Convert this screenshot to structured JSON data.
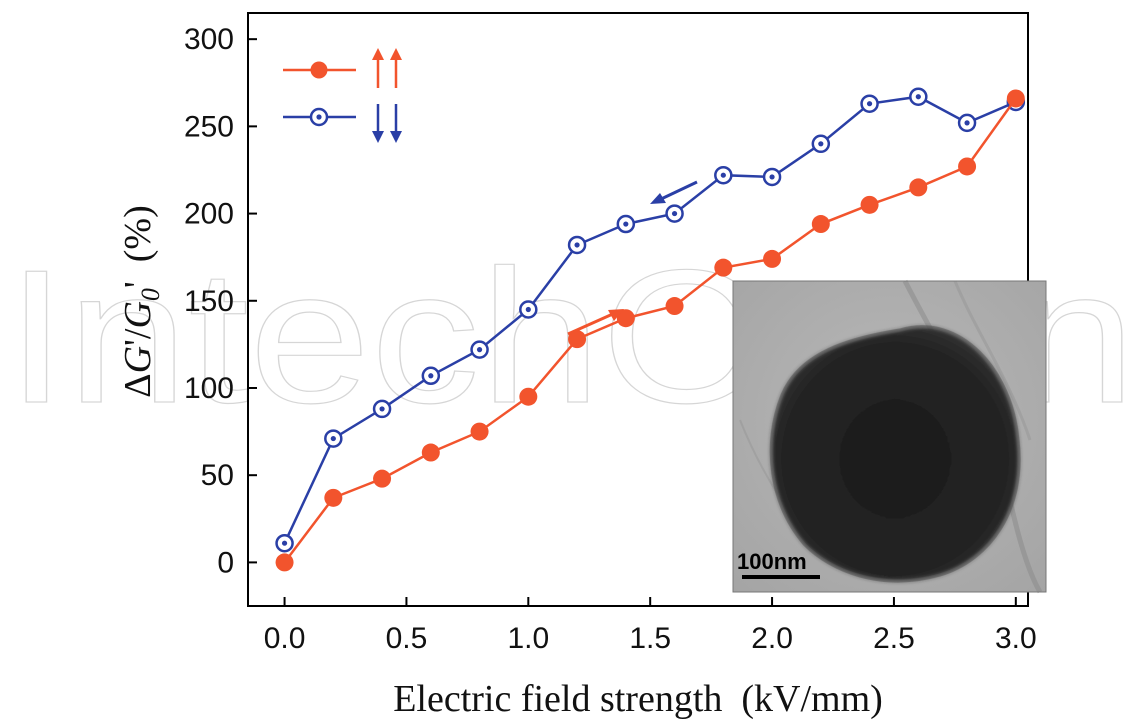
{
  "watermark": "IntechOpen",
  "chart_data": {
    "type": "line",
    "xlabel": "Electric field strength  (kV/mm)",
    "ylabel": "ΔG'/G0'  (%)",
    "ylabel_parts": {
      "delta": "Δ",
      "g1": "G",
      "p1": "'",
      "slash": "/",
      "g2": "G",
      "sub": "0",
      "p2": "'",
      "unit": "  (%)"
    },
    "xlim": [
      -0.15,
      3.05
    ],
    "ylim": [
      -25,
      315
    ],
    "x_ticks": [
      0.0,
      0.5,
      1.0,
      1.5,
      2.0,
      2.5,
      3.0
    ],
    "x_tick_labels": [
      "0.0",
      "0.5",
      "1.0",
      "1.5",
      "2.0",
      "2.5",
      "3.0"
    ],
    "y_ticks": [
      0,
      50,
      100,
      150,
      200,
      250,
      300
    ],
    "y_tick_labels": [
      "0",
      "50",
      "100",
      "150",
      "200",
      "250",
      "300"
    ],
    "x": [
      0.0,
      0.2,
      0.4,
      0.6,
      0.8,
      1.0,
      1.2,
      1.4,
      1.6,
      1.8,
      2.0,
      2.2,
      2.4,
      2.6,
      2.8,
      3.0
    ],
    "series": [
      {
        "name": "↑↑",
        "color": "#f2542d",
        "marker": "filled-circle",
        "values": [
          0,
          37,
          48,
          63,
          75,
          95,
          128,
          140,
          147,
          169,
          174,
          194,
          205,
          215,
          227,
          266
        ]
      },
      {
        "name": "↓↓",
        "color": "#2a3fa6",
        "marker": "open-circle-dot",
        "values": [
          11,
          71,
          88,
          107,
          122,
          145,
          182,
          194,
          200,
          222,
          221,
          240,
          263,
          267,
          252,
          264
        ]
      }
    ],
    "legend_position": "top-left",
    "annotations": [
      {
        "type": "arrow",
        "direction": "increasing",
        "color": "#f2542d"
      },
      {
        "type": "arrow",
        "direction": "decreasing",
        "color": "#2a3fa6"
      }
    ],
    "inset": {
      "kind": "TEM micrograph of a nanoparticle",
      "scale_label": "100nm"
    }
  }
}
